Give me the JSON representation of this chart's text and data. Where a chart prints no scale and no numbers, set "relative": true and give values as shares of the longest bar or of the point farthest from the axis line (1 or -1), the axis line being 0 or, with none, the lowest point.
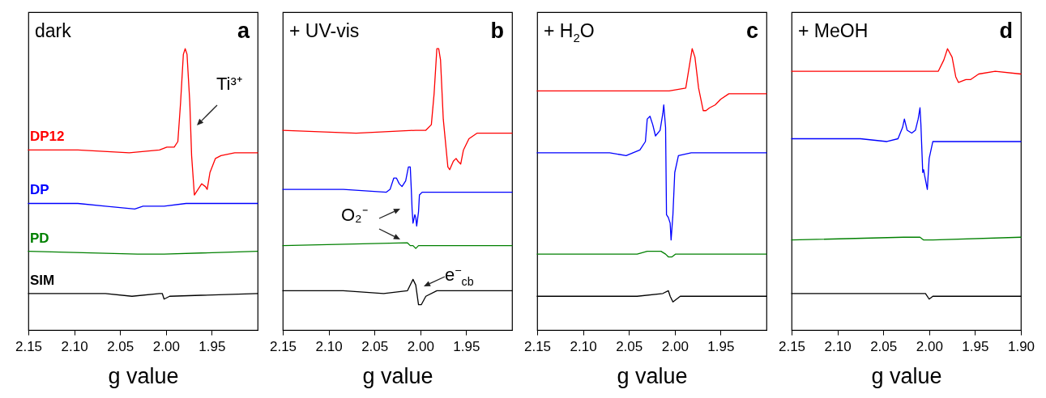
{
  "chart_data": [
    {
      "type": "line",
      "relative": true,
      "xlabel": "g value",
      "xlim": [
        2.15,
        1.9
      ],
      "tick_labels": "x",
      "xticks": [
        2.15,
        {
          "value": 2.1,
          "label": "2.10"
        },
        2.05,
        {
          "value": 2.0,
          "label": "2.00"
        },
        1.95
      ],
      "annotations": [
        "dark",
        "a",
        "Ti³⁺"
      ],
      "series": [
        {
          "name": "DP12",
          "color": "#ff0000",
          "x": [
            2.15,
            2.096,
            2.04,
            2.007,
            1.999,
            1.996,
            1.991,
            1.987,
            1.984,
            1.981,
            1.979,
            1.977,
            1.974,
            1.972,
            1.969,
            1.965,
            1.961,
            1.957,
            1.955,
            1.952,
            1.946,
            1.94,
            1.925,
            1.9
          ],
          "values": [
            0.64,
            0.64,
            0.63,
            0.64,
            0.65,
            0.65,
            0.65,
            0.67,
            0.81,
            0.98,
            1.0,
            0.98,
            0.81,
            0.62,
            0.48,
            0.5,
            0.52,
            0.51,
            0.5,
            0.56,
            0.61,
            0.62,
            0.63,
            0.63
          ]
        },
        {
          "name": "DP",
          "color": "#0000ff",
          "x": [
            2.15,
            2.096,
            2.066,
            2.034,
            2.025,
            2.002,
            1.978,
            1.9
          ],
          "values": [
            0.45,
            0.45,
            0.44,
            0.43,
            0.44,
            0.44,
            0.45,
            0.45
          ]
        },
        {
          "name": "PD",
          "color": "#008000",
          "x": [
            2.15,
            2.031,
            2.002,
            1.9
          ],
          "values": [
            0.28,
            0.27,
            0.27,
            0.28
          ]
        },
        {
          "name": "SIM",
          "color": "#000000",
          "x": [
            2.15,
            2.066,
            2.037,
            2.007,
            2.004,
            2.002,
            1.996,
            1.9
          ],
          "values": [
            0.13,
            0.13,
            0.12,
            0.13,
            0.13,
            0.11,
            0.12,
            0.13
          ]
        }
      ]
    },
    {
      "type": "line",
      "relative": true,
      "xlabel": "g value",
      "xlim": [
        2.15,
        1.9
      ],
      "tick_labels": "x",
      "xticks": [
        2.15,
        {
          "value": 2.1,
          "label": "2.10"
        },
        2.05,
        {
          "value": 2.0,
          "label": "2.00"
        },
        1.95
      ],
      "annotations": [
        "+ UV-vis",
        "b",
        "O₂⁻",
        "e$^{−}$$_{cb}$"
      ],
      "series": [
        {
          "color": "#ff0000",
          "x": [
            2.15,
            2.07,
            2.005,
            1.998,
            1.994,
            1.988,
            1.985,
            1.982,
            1.98,
            1.978,
            1.975,
            1.97,
            1.968,
            1.964,
            1.961,
            1.959,
            1.956,
            1.953,
            1.947,
            1.938,
            1.9
          ],
          "values": [
            0.71,
            0.7,
            0.71,
            0.71,
            0.71,
            0.73,
            0.84,
            1.0,
            1.0,
            0.96,
            0.75,
            0.58,
            0.57,
            0.6,
            0.61,
            0.6,
            0.59,
            0.64,
            0.68,
            0.7,
            0.7
          ]
        },
        {
          "color": "#0000ff",
          "x": [
            2.15,
            2.084,
            2.037,
            2.033,
            2.029,
            2.026,
            2.023,
            2.02,
            2.016,
            2.013,
            2.011,
            2.01,
            2.009,
            2.008,
            2.006,
            2.005,
            2.004,
            2.002,
            2.001,
            1.998,
            1.982,
            1.9
          ],
          "values": [
            0.5,
            0.5,
            0.49,
            0.5,
            0.54,
            0.54,
            0.52,
            0.51,
            0.53,
            0.58,
            0.58,
            0.51,
            0.43,
            0.38,
            0.41,
            0.4,
            0.37,
            0.42,
            0.48,
            0.49,
            0.49,
            0.49
          ]
        },
        {
          "color": "#008000",
          "x": [
            2.15,
            2.014,
            2.011,
            2.008,
            2.005,
            2.002,
            1.9
          ],
          "values": [
            0.3,
            0.31,
            0.3,
            0.3,
            0.29,
            0.3,
            0.3
          ]
        },
        {
          "color": "#000000",
          "x": [
            2.15,
            2.084,
            2.04,
            2.014,
            2.008,
            2.005,
            2.002,
            1.999,
            1.994,
            1.982,
            1.9
          ],
          "values": [
            0.14,
            0.14,
            0.13,
            0.14,
            0.18,
            0.16,
            0.09,
            0.09,
            0.12,
            0.14,
            0.14
          ]
        }
      ]
    },
    {
      "type": "line",
      "relative": true,
      "xlabel": "g value",
      "xlim": [
        2.15,
        1.9
      ],
      "tick_labels": "x",
      "xticks": [
        2.15,
        {
          "value": 2.1,
          "label": "2.10"
        },
        2.05,
        {
          "value": 2.0,
          "label": "2.00"
        },
        1.95
      ],
      "annotations": [
        "+ H$_{2}$O",
        "c"
      ],
      "series": [
        {
          "color": "#ff0000",
          "x": [
            2.15,
            2.071,
            2.006,
            1.988,
            1.984,
            1.981,
            1.978,
            1.974,
            1.969,
            1.966,
            1.962,
            1.956,
            1.95,
            1.941,
            1.924,
            1.9
          ],
          "values": [
            0.85,
            0.85,
            0.85,
            0.86,
            0.94,
            1.0,
            0.97,
            0.86,
            0.78,
            0.78,
            0.79,
            0.8,
            0.82,
            0.84,
            0.84,
            0.84
          ]
        },
        {
          "color": "#0000ff",
          "x": [
            2.15,
            2.071,
            2.053,
            2.038,
            2.032,
            2.03,
            2.027,
            2.024,
            2.021,
            2.016,
            2.013,
            2.012,
            2.01,
            2.009,
            2.007,
            2.005,
            2.004,
            2.002,
            2.0,
            1.996,
            1.982,
            1.9
          ],
          "values": [
            0.63,
            0.63,
            0.62,
            0.64,
            0.67,
            0.75,
            0.76,
            0.73,
            0.69,
            0.71,
            0.77,
            0.8,
            0.72,
            0.41,
            0.4,
            0.38,
            0.32,
            0.41,
            0.56,
            0.62,
            0.63,
            0.63
          ]
        },
        {
          "color": "#008000",
          "x": [
            2.15,
            2.041,
            2.03,
            2.015,
            2.01,
            2.007,
            2.003,
            1.999,
            1.982,
            1.9
          ],
          "values": [
            0.27,
            0.27,
            0.28,
            0.28,
            0.27,
            0.26,
            0.26,
            0.27,
            0.27,
            0.27
          ]
        },
        {
          "color": "#000000",
          "x": [
            2.15,
            2.041,
            2.013,
            2.007,
            2.005,
            2.002,
            1.994,
            1.982,
            1.9
          ],
          "values": [
            0.12,
            0.12,
            0.13,
            0.14,
            0.12,
            0.1,
            0.12,
            0.12,
            0.12
          ]
        }
      ]
    },
    {
      "type": "line",
      "relative": true,
      "xlabel": "g value",
      "xlim": [
        2.15,
        1.9
      ],
      "tick_labels": "x",
      "xticks": [
        2.15,
        {
          "value": 2.1,
          "label": "2.10"
        },
        2.05,
        {
          "value": 2.0,
          "label": "2.00"
        },
        1.95,
        {
          "value": 1.9,
          "label": "1.90"
        }
      ],
      "annotations": [
        "+ MeOH",
        "d"
      ],
      "series": [
        {
          "color": "#ff0000",
          "x": [
            2.15,
            2.075,
            2.004,
            1.99,
            1.984,
            1.98,
            1.975,
            1.971,
            1.968,
            1.96,
            1.955,
            1.946,
            1.928,
            1.9
          ],
          "values": [
            0.92,
            0.92,
            0.92,
            0.92,
            0.96,
            1.0,
            0.97,
            0.9,
            0.88,
            0.89,
            0.89,
            0.91,
            0.92,
            0.91
          ]
        },
        {
          "color": "#0000ff",
          "x": [
            2.15,
            2.075,
            2.046,
            2.034,
            2.029,
            2.027,
            2.024,
            2.019,
            2.015,
            2.012,
            2.01,
            2.009,
            2.007,
            2.006,
            2.005,
            2.002,
            2.0,
            1.996,
            1.972,
            1.9
          ],
          "values": [
            0.68,
            0.68,
            0.67,
            0.68,
            0.72,
            0.75,
            0.71,
            0.7,
            0.71,
            0.75,
            0.79,
            0.73,
            0.56,
            0.57,
            0.55,
            0.5,
            0.61,
            0.67,
            0.67,
            0.67
          ]
        },
        {
          "color": "#008000",
          "x": [
            2.15,
            2.028,
            2.01,
            2.006,
            2.002,
            1.996,
            1.9
          ],
          "values": [
            0.32,
            0.33,
            0.33,
            0.32,
            0.32,
            0.32,
            0.33
          ]
        },
        {
          "color": "#000000",
          "x": [
            2.15,
            2.016,
            2.007,
            2.004,
            2.0,
            1.996,
            1.9
          ],
          "values": [
            0.13,
            0.13,
            0.13,
            0.13,
            0.11,
            0.12,
            0.12
          ]
        }
      ]
    }
  ]
}
